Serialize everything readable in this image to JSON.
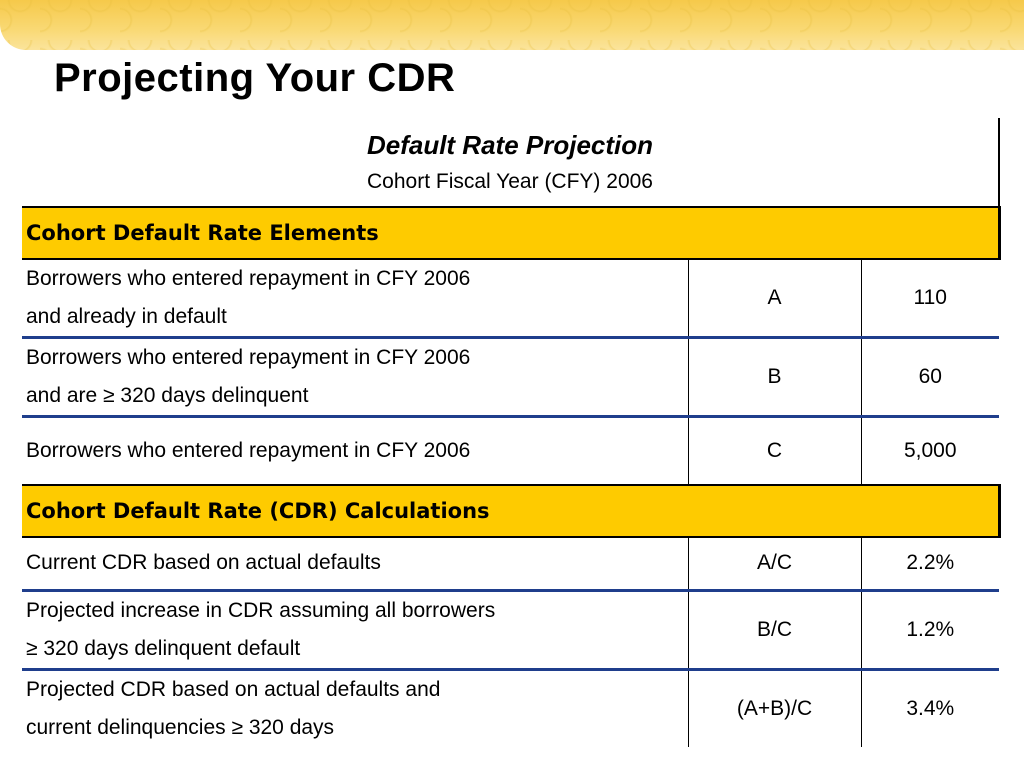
{
  "slide": {
    "title": "Projecting Your CDR"
  },
  "table": {
    "title": "Default Rate Projection",
    "subtitle": "Cohort Fiscal Year (CFY) 2006",
    "sections": [
      {
        "heading": "Cohort Default Rate Elements",
        "rows": [
          {
            "desc_line1": "Borrowers who entered repayment in CFY 2006",
            "desc_line2": "and already in default",
            "code": "A",
            "value": "110"
          },
          {
            "desc_line1": "Borrowers who entered repayment in CFY 2006",
            "desc_line2": "and are ≥ 320 days delinquent",
            "code": "B",
            "value": "60"
          },
          {
            "desc_line1": "Borrowers who entered repayment in CFY 2006",
            "desc_line2": "",
            "code": "C",
            "value": "5,000"
          }
        ]
      },
      {
        "heading": "Cohort Default Rate (CDR) Calculations",
        "rows": [
          {
            "desc_line1": "Current CDR based on actual defaults",
            "desc_line2": "",
            "code": "A/C",
            "value": "2.2%"
          },
          {
            "desc_line1": "Projected increase in CDR assuming all borrowers",
            "desc_line2": "≥ 320 days delinquent default",
            "code": "B/C",
            "value": "1.2%"
          },
          {
            "desc_line1": "Projected CDR based on actual defaults and",
            "desc_line2": "current delinquencies ≥ 320 days",
            "code": "(A+B)/C",
            "value": "3.4%"
          }
        ]
      }
    ]
  },
  "colors": {
    "section_fill": "#fecb00",
    "row_divider": "#1f3e8c",
    "band": "#f6c94a"
  }
}
